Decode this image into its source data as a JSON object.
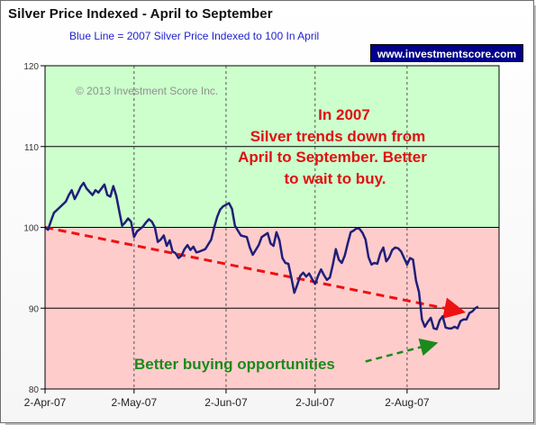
{
  "title": "Silver Price Indexed - April to September",
  "subtitle": "Blue Line =  2007 Silver Price Indexed to 100 In April",
  "badge": "www.investmentscore.com",
  "colors": {
    "band_upper": "#ccffcc",
    "band_lower": "#ffcccc",
    "line": "#1f1f7a",
    "trend": "#ee1111",
    "green_text": "#1b8a1b",
    "red_text": "#e01010",
    "badge_bg": "#00008b"
  },
  "chart_data": {
    "type": "line",
    "title": "Silver Price Indexed - April to September",
    "ylim": [
      80,
      120
    ],
    "yticks": [
      "80",
      "90",
      "100",
      "110",
      "120"
    ],
    "xticks": [
      {
        "label": "2-Apr-07",
        "day": 0
      },
      {
        "label": "2-May-07",
        "day": 30
      },
      {
        "label": "2-Jun-07",
        "day": 61
      },
      {
        "label": "2-Jul-07",
        "day": 91
      },
      {
        "label": "2-Aug-07",
        "day": 122
      }
    ],
    "xlim_days": [
      0,
      153
    ],
    "bands": [
      {
        "from": 100,
        "to": 120,
        "color": "band_upper"
      },
      {
        "from": 80,
        "to": 100,
        "color": "band_lower"
      }
    ],
    "series": [
      {
        "values": [
          [
            0,
            100
          ],
          [
            1,
            99.7
          ],
          [
            2,
            100.8
          ],
          [
            3,
            101.8
          ],
          [
            5,
            102.5
          ],
          [
            7,
            103.2
          ],
          [
            8,
            104.0
          ],
          [
            9,
            104.6
          ],
          [
            10,
            103.5
          ],
          [
            11,
            104.2
          ],
          [
            12,
            105.0
          ],
          [
            13,
            105.5
          ],
          [
            14,
            104.8
          ],
          [
            15,
            104.4
          ],
          [
            16,
            104.0
          ],
          [
            17,
            104.6
          ],
          [
            18,
            104.3
          ],
          [
            19,
            104.8
          ],
          [
            20,
            105.3
          ],
          [
            21,
            104.0
          ],
          [
            22,
            103.8
          ],
          [
            23,
            105.1
          ],
          [
            24,
            103.9
          ],
          [
            25,
            102.0
          ],
          [
            26,
            100.2
          ],
          [
            27,
            100.6
          ],
          [
            28,
            101.1
          ],
          [
            29,
            100.7
          ],
          [
            30,
            98.8
          ],
          [
            31,
            99.5
          ],
          [
            32,
            99.8
          ],
          [
            33,
            100.1
          ],
          [
            34,
            100.6
          ],
          [
            35,
            101.0
          ],
          [
            36,
            100.7
          ],
          [
            37,
            100.0
          ],
          [
            38,
            98.2
          ],
          [
            39,
            98.5
          ],
          [
            40,
            99.0
          ],
          [
            41,
            97.7
          ],
          [
            42,
            98.4
          ],
          [
            43,
            97.0
          ],
          [
            44,
            96.8
          ],
          [
            45,
            96.2
          ],
          [
            46,
            96.5
          ],
          [
            47,
            97.3
          ],
          [
            48,
            97.8
          ],
          [
            49,
            97.2
          ],
          [
            50,
            97.6
          ],
          [
            51,
            96.9
          ],
          [
            52,
            97.0
          ],
          [
            54,
            97.3
          ],
          [
            56,
            98.5
          ],
          [
            57,
            100.0
          ],
          [
            58,
            101.3
          ],
          [
            59,
            102.2
          ],
          [
            60,
            102.6
          ],
          [
            62,
            103.0
          ],
          [
            63,
            102.3
          ],
          [
            64,
            100.2
          ],
          [
            65,
            99.6
          ],
          [
            66,
            99.0
          ],
          [
            68,
            98.8
          ],
          [
            69,
            97.5
          ],
          [
            70,
            96.6
          ],
          [
            72,
            97.8
          ],
          [
            73,
            98.8
          ],
          [
            75,
            99.3
          ],
          [
            76,
            98.0
          ],
          [
            77,
            97.7
          ],
          [
            78,
            99.4
          ],
          [
            79,
            98.4
          ],
          [
            80,
            96.2
          ],
          [
            81,
            95.6
          ],
          [
            82,
            95.5
          ],
          [
            83,
            93.8
          ],
          [
            84,
            91.9
          ],
          [
            85,
            92.9
          ],
          [
            86,
            94.0
          ],
          [
            87,
            94.4
          ],
          [
            88,
            93.9
          ],
          [
            89,
            94.3
          ],
          [
            90,
            93.6
          ],
          [
            91,
            93.0
          ],
          [
            92,
            94.0
          ],
          [
            93,
            94.8
          ],
          [
            94,
            94.1
          ],
          [
            95,
            93.5
          ],
          [
            96,
            93.8
          ],
          [
            97,
            95.4
          ],
          [
            98,
            97.3
          ],
          [
            99,
            96.0
          ],
          [
            100,
            95.6
          ],
          [
            101,
            96.5
          ],
          [
            102,
            98.0
          ],
          [
            103,
            99.4
          ],
          [
            104,
            99.6
          ],
          [
            105,
            99.9
          ],
          [
            106,
            99.8
          ],
          [
            107,
            99.3
          ],
          [
            108,
            98.5
          ],
          [
            109,
            96.3
          ],
          [
            110,
            95.4
          ],
          [
            111,
            95.6
          ],
          [
            112,
            95.5
          ],
          [
            113,
            96.8
          ],
          [
            114,
            97.5
          ],
          [
            115,
            95.8
          ],
          [
            116,
            96.3
          ],
          [
            117,
            97.2
          ],
          [
            118,
            97.5
          ],
          [
            119,
            97.4
          ],
          [
            120,
            97.0
          ],
          [
            121,
            96.2
          ],
          [
            122,
            95.4
          ],
          [
            123,
            96.2
          ],
          [
            124,
            96.0
          ],
          [
            125,
            93.4
          ],
          [
            126,
            92.0
          ],
          [
            127,
            88.6
          ],
          [
            128,
            87.7
          ],
          [
            129,
            88.3
          ],
          [
            130,
            88.8
          ],
          [
            131,
            87.5
          ],
          [
            132,
            87.4
          ],
          [
            133,
            88.5
          ],
          [
            134,
            89.0
          ],
          [
            135,
            87.6
          ],
          [
            136,
            87.5
          ],
          [
            137,
            87.5
          ],
          [
            138,
            87.7
          ],
          [
            139,
            87.5
          ],
          [
            140,
            88.4
          ],
          [
            141,
            88.6
          ],
          [
            142,
            88.6
          ],
          [
            143,
            89.4
          ],
          [
            144,
            89.6
          ],
          [
            145,
            90.0
          ],
          [
            146,
            90.2
          ]
        ]
      }
    ],
    "annotations": [
      {
        "lines": [
          "In 2007",
          "Silver trends down from",
          "April to September.  Better",
          "to wait to buy."
        ],
        "color": "red_text"
      },
      {
        "lines": [
          "Better buying opportunities"
        ],
        "color": "green_text"
      },
      {
        "lines": [
          "© 2013 Investment Score Inc."
        ],
        "color": "#909090"
      }
    ],
    "trend_line": {
      "from": [
        0,
        100
      ],
      "to": [
        140,
        89.6
      ]
    },
    "green_arrow": {
      "from": [
        108,
        83.4
      ],
      "to": [
        131,
        85.6
      ]
    },
    "grid": "horizontal solid at 90 and 110, vertical dashed at month ticks"
  }
}
